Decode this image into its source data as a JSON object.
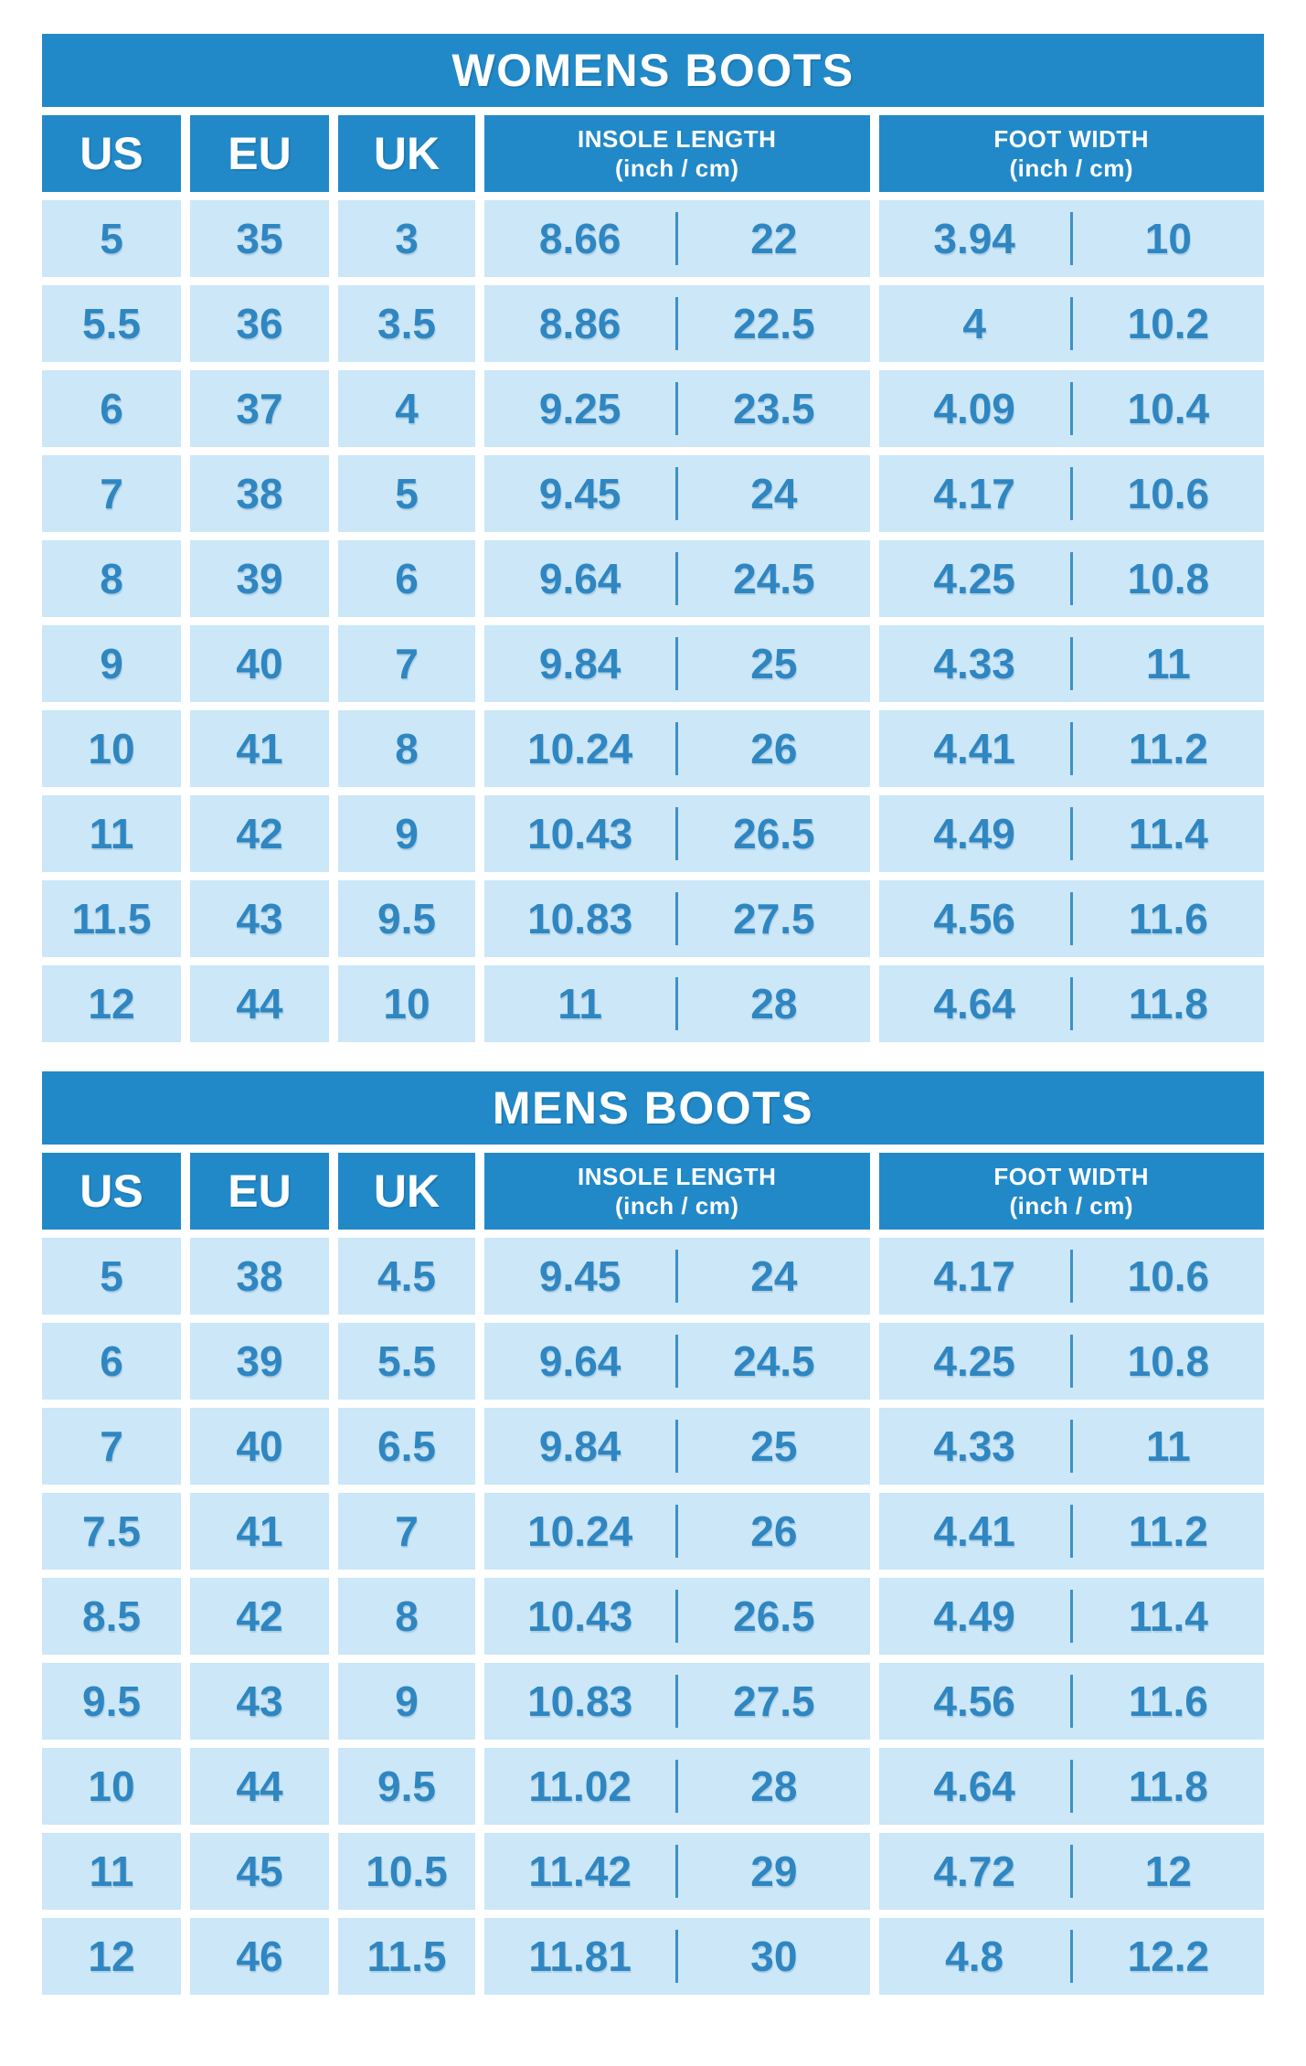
{
  "colors": {
    "header_bg": "#2289c8",
    "cell_bg": "#cbe7f8",
    "value_text": "#2f86c1",
    "header_text": "#ffffff",
    "page_bg": "#ffffff"
  },
  "chart_data": [
    {
      "type": "table",
      "title": "WOMENS BOOTS",
      "columns": [
        {
          "label": "US"
        },
        {
          "label": "EU"
        },
        {
          "label": "UK"
        },
        {
          "label": "INSOLE LENGTH",
          "sublabel": "(inch / cm)"
        },
        {
          "label": "FOOT WIDTH",
          "sublabel": "(inch / cm)"
        }
      ],
      "rows": [
        [
          "5",
          "35",
          "3",
          "8.66",
          "22",
          "3.94",
          "10"
        ],
        [
          "5.5",
          "36",
          "3.5",
          "8.86",
          "22.5",
          "4",
          "10.2"
        ],
        [
          "6",
          "37",
          "4",
          "9.25",
          "23.5",
          "4.09",
          "10.4"
        ],
        [
          "7",
          "38",
          "5",
          "9.45",
          "24",
          "4.17",
          "10.6"
        ],
        [
          "8",
          "39",
          "6",
          "9.64",
          "24.5",
          "4.25",
          "10.8"
        ],
        [
          "9",
          "40",
          "7",
          "9.84",
          "25",
          "4.33",
          "11"
        ],
        [
          "10",
          "41",
          "8",
          "10.24",
          "26",
          "4.41",
          "11.2"
        ],
        [
          "11",
          "42",
          "9",
          "10.43",
          "26.5",
          "4.49",
          "11.4"
        ],
        [
          "11.5",
          "43",
          "9.5",
          "10.83",
          "27.5",
          "4.56",
          "11.6"
        ],
        [
          "12",
          "44",
          "10",
          "11",
          "28",
          "4.64",
          "11.8"
        ]
      ]
    },
    {
      "type": "table",
      "title": "MENS BOOTS",
      "columns": [
        {
          "label": "US"
        },
        {
          "label": "EU"
        },
        {
          "label": "UK"
        },
        {
          "label": "INSOLE LENGTH",
          "sublabel": "(inch / cm)"
        },
        {
          "label": "FOOT WIDTH",
          "sublabel": "(inch / cm)"
        }
      ],
      "rows": [
        [
          "5",
          "38",
          "4.5",
          "9.45",
          "24",
          "4.17",
          "10.6"
        ],
        [
          "6",
          "39",
          "5.5",
          "9.64",
          "24.5",
          "4.25",
          "10.8"
        ],
        [
          "7",
          "40",
          "6.5",
          "9.84",
          "25",
          "4.33",
          "11"
        ],
        [
          "7.5",
          "41",
          "7",
          "10.24",
          "26",
          "4.41",
          "11.2"
        ],
        [
          "8.5",
          "42",
          "8",
          "10.43",
          "26.5",
          "4.49",
          "11.4"
        ],
        [
          "9.5",
          "43",
          "9",
          "10.83",
          "27.5",
          "4.56",
          "11.6"
        ],
        [
          "10",
          "44",
          "9.5",
          "11.02",
          "28",
          "4.64",
          "11.8"
        ],
        [
          "11",
          "45",
          "10.5",
          "11.42",
          "29",
          "4.72",
          "12"
        ],
        [
          "12",
          "46",
          "11.5",
          "11.81",
          "30",
          "4.8",
          "12.2"
        ]
      ]
    }
  ]
}
